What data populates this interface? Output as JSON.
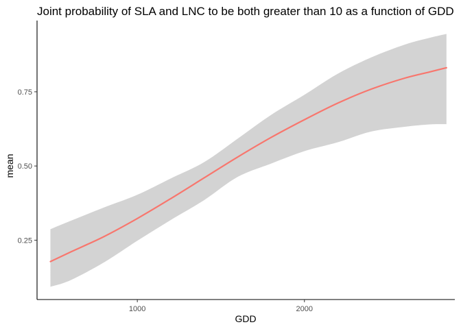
{
  "chart_data": {
    "type": "line",
    "title": "Joint probability of SLA and LNC to be both greater than 10 as a function of GDD",
    "xlabel": "GDD",
    "ylabel": "mean",
    "xlim": [
      400,
      2900
    ],
    "ylim": [
      0.05,
      0.99
    ],
    "x_ticks": [
      1000,
      2000
    ],
    "y_ticks": [
      0.25,
      0.5,
      0.75
    ],
    "x_tick_labels": [
      "1000",
      "2000"
    ],
    "y_tick_labels": [
      "0.25",
      "0.50",
      "0.75"
    ],
    "grid": false,
    "legend": "none",
    "series": [
      {
        "color": "#f8766d",
        "ribbon_color": "#d3d3d3",
        "x": [
          480,
          600,
          800,
          1000,
          1200,
          1400,
          1600,
          1800,
          2000,
          2200,
          2400,
          2600,
          2750,
          2850
        ],
        "mean": [
          0.178,
          0.21,
          0.262,
          0.323,
          0.39,
          0.46,
          0.53,
          0.596,
          0.656,
          0.712,
          0.759,
          0.796,
          0.817,
          0.831
        ],
        "lower": [
          0.093,
          0.115,
          0.175,
          0.248,
          0.318,
          0.385,
          0.463,
          0.508,
          0.55,
          0.58,
          0.616,
          0.632,
          0.64,
          0.641
        ],
        "upper": [
          0.287,
          0.315,
          0.36,
          0.403,
          0.458,
          0.513,
          0.592,
          0.672,
          0.74,
          0.811,
          0.866,
          0.909,
          0.932,
          0.945
        ]
      }
    ]
  }
}
